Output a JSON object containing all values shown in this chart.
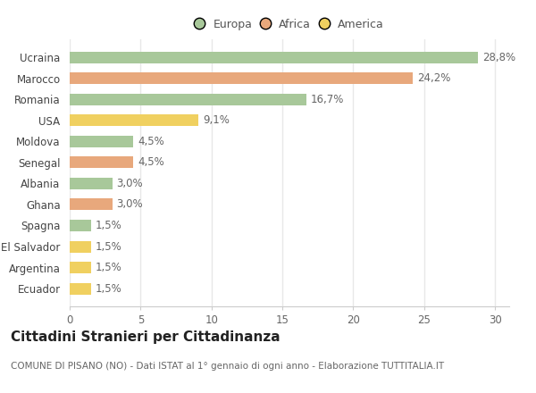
{
  "categories": [
    "Ecuador",
    "Argentina",
    "El Salvador",
    "Spagna",
    "Ghana",
    "Albania",
    "Senegal",
    "Moldova",
    "USA",
    "Romania",
    "Marocco",
    "Ucraina"
  ],
  "values": [
    1.5,
    1.5,
    1.5,
    1.5,
    3.0,
    3.0,
    4.5,
    4.5,
    9.1,
    16.7,
    24.2,
    28.8
  ],
  "labels": [
    "1,5%",
    "1,5%",
    "1,5%",
    "1,5%",
    "3,0%",
    "3,0%",
    "4,5%",
    "4,5%",
    "9,1%",
    "16,7%",
    "24,2%",
    "28,8%"
  ],
  "continents": [
    "America",
    "America",
    "America",
    "Europa",
    "Africa",
    "Europa",
    "Africa",
    "Europa",
    "America",
    "Europa",
    "Africa",
    "Europa"
  ],
  "colors": {
    "Europa": "#a8c89a",
    "Africa": "#e8a87c",
    "America": "#f0d060"
  },
  "legend_labels": [
    "Europa",
    "Africa",
    "America"
  ],
  "legend_colors": [
    "#a8c89a",
    "#e8a87c",
    "#f0d060"
  ],
  "title": "Cittadini Stranieri per Cittadinanza",
  "subtitle": "COMUNE DI PISANO (NO) - Dati ISTAT al 1° gennaio di ogni anno - Elaborazione TUTTITALIA.IT",
  "xlim": [
    0,
    31
  ],
  "xticks": [
    0,
    5,
    10,
    15,
    20,
    25,
    30
  ],
  "background_color": "#ffffff",
  "grid_color": "#e8e8e8",
  "label_fontsize": 8.5,
  "ylabel_fontsize": 8.5,
  "xlabel_fontsize": 8.5,
  "title_fontsize": 11,
  "subtitle_fontsize": 7.5
}
